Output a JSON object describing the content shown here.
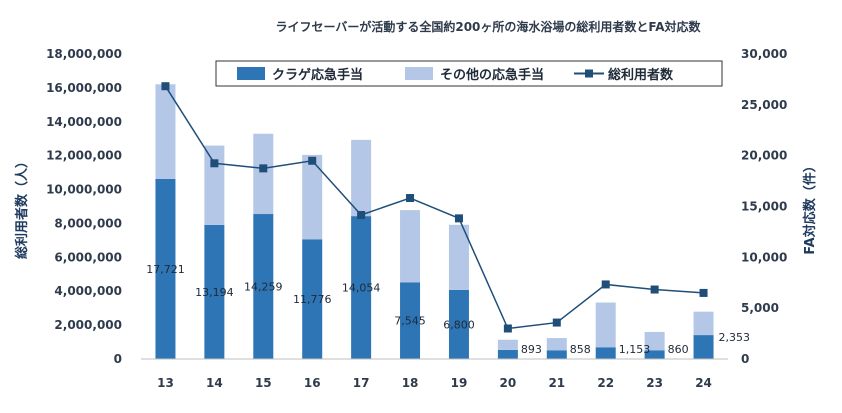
{
  "chart_data": {
    "type": "bar",
    "title": "ライフセーバーが活動する全国約200ヶ所の海水浴場の総利用者数とFA対応数",
    "categories": [
      "13",
      "14",
      "15",
      "16",
      "17",
      "18",
      "19",
      "20",
      "21",
      "22",
      "23",
      "24"
    ],
    "ylabel_left": "総利用者数（人）",
    "ylabel_right": "FA対応数（件）",
    "ylim_left": [
      0,
      18000000
    ],
    "ylim_right": [
      0,
      30000
    ],
    "yticks_left": [
      "0",
      "2,000,000",
      "4,000,000",
      "6,000,000",
      "8,000,000",
      "10,000,000",
      "12,000,000",
      "14,000,000",
      "16,000,000",
      "18,000,000"
    ],
    "yticks_right": [
      "0",
      "5,000",
      "10,000",
      "15,000",
      "20,000",
      "25,000",
      "30,000"
    ],
    "series": [
      {
        "name": "クラゲ応急手当",
        "axis": "right",
        "kind": "stacked-bar",
        "color": "#2e75b6",
        "values": [
          17721,
          13194,
          14259,
          11776,
          14054,
          7545,
          6800,
          893,
          858,
          1153,
          860,
          2353
        ],
        "labels": [
          "17,721",
          "13,194",
          "14,259",
          "11,776",
          "14,054",
          "7,545",
          "6,800",
          "893",
          "858",
          "1,153",
          "860",
          "2,353"
        ]
      },
      {
        "name": "その他の応急手当",
        "axis": "right",
        "kind": "stacked-bar",
        "color": "#b4c7e7",
        "values": [
          9300,
          7800,
          7900,
          8300,
          7500,
          7100,
          6400,
          1000,
          1200,
          4400,
          1800,
          2300
        ]
      },
      {
        "name": "総利用者数",
        "axis": "left",
        "kind": "line",
        "color": "#1f4e79",
        "values": [
          16100000,
          11550000,
          11250000,
          11700000,
          8500000,
          9500000,
          8300000,
          1800000,
          2150000,
          4400000,
          4100000,
          3900000
        ]
      }
    ],
    "legend_position": "top-right",
    "grid": false
  }
}
